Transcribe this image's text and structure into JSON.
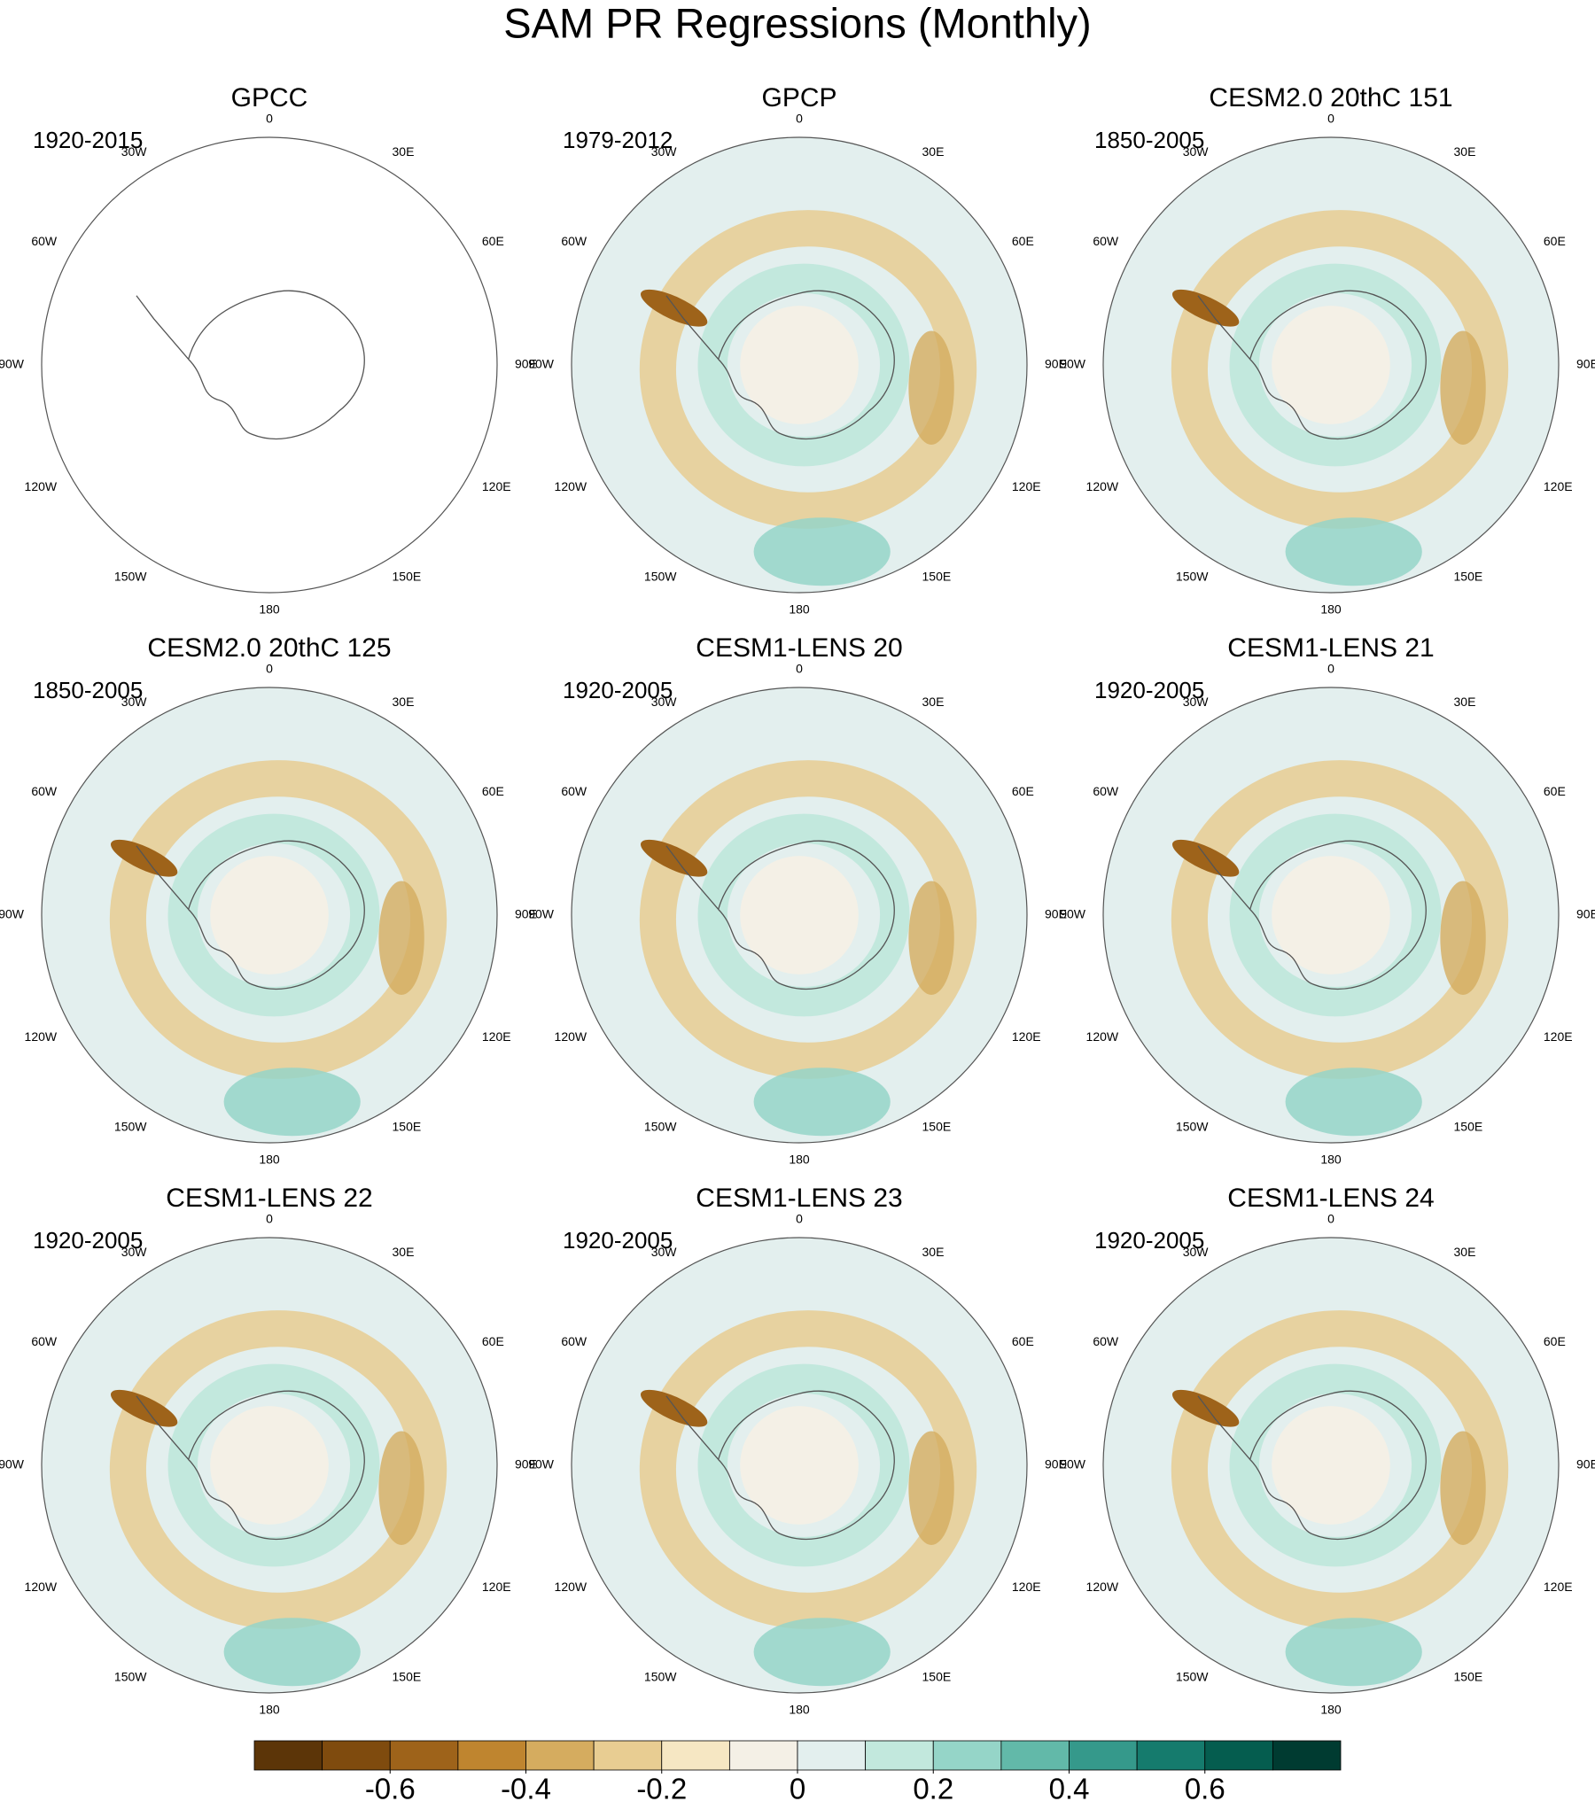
{
  "header": {
    "title": "SAM PR Regressions (Monthly)"
  },
  "longitude_labels": [
    "0",
    "30E",
    "60E",
    "90E",
    "120E",
    "150E",
    "180",
    "150W",
    "120W",
    "90W",
    "60W",
    "30W"
  ],
  "panels": [
    {
      "title": "GPCC",
      "period": "1920-2015"
    },
    {
      "title": "GPCP",
      "period": "1979-2012"
    },
    {
      "title": "CESM2.0 20thC 151",
      "period": "1850-2005"
    },
    {
      "title": "CESM2.0 20thC 125",
      "period": "1850-2005"
    },
    {
      "title": "CESM1-LENS 20",
      "period": "1920-2005"
    },
    {
      "title": "CESM1-LENS 21",
      "period": "1920-2005"
    },
    {
      "title": "CESM1-LENS 22",
      "period": "1920-2005"
    },
    {
      "title": "CESM1-LENS 23",
      "period": "1920-2005"
    },
    {
      "title": "CESM1-LENS 24",
      "period": "1920-2005"
    }
  ],
  "colorbar": {
    "lim": [
      -0.8,
      0.8
    ],
    "ticks": [
      -0.6,
      -0.4,
      -0.2,
      0,
      0.2,
      0.4,
      0.6
    ],
    "colors": [
      "#5c3508",
      "#7f4b0e",
      "#9e631a",
      "#bf852f",
      "#d5ac5f",
      "#e8cd92",
      "#f6e7c3",
      "#f4f0e6",
      "#e3efee",
      "#c2e8dd",
      "#95d5c8",
      "#62b9a9",
      "#35998b",
      "#157b6d",
      "#055d4f",
      "#003b31"
    ]
  }
}
